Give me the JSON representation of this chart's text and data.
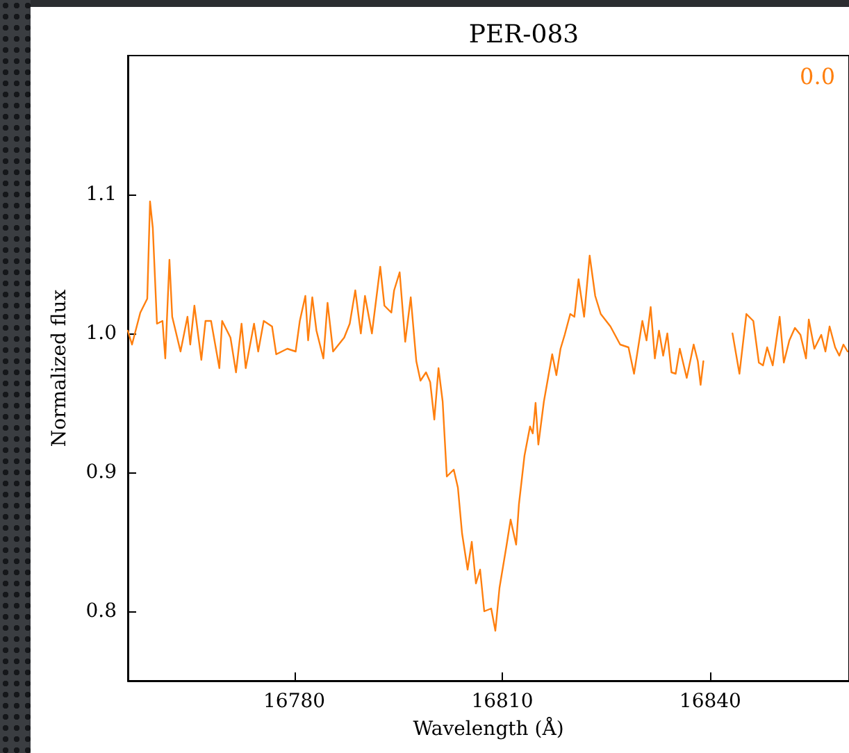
{
  "chart_data": {
    "type": "line",
    "title": "PER-083",
    "xlabel": "Wavelength (Å)",
    "ylabel": "Normalized flux",
    "annotations": [
      "0.0"
    ],
    "xlim": [
      16756,
      16860
    ],
    "ylim": [
      0.75,
      1.2
    ],
    "xticks": [
      16780,
      16810,
      16840
    ],
    "yticks": [
      0.8,
      0.9,
      {
        "value": 1.0,
        "label": "1.0"
      },
      1.1
    ],
    "grid": false,
    "marker": "none",
    "line_style": "solid",
    "series": [
      {
        "color": "#ff7f0e",
        "x": [
          16756.0,
          16756.6,
          16757.8,
          16758.8,
          16759.2,
          16759.6,
          16760.2,
          16761.0,
          16761.4,
          16762.0,
          16762.4,
          16763.6,
          16764.6,
          16765.0,
          16765.6,
          16766.6,
          16767.2,
          16768.0,
          16769.2,
          16769.6,
          16770.8,
          16771.6,
          16772.4,
          16773.0,
          16774.2,
          16774.8,
          16775.6,
          16776.8,
          16777.4,
          16779.0,
          16780.2,
          16780.8,
          16781.6,
          16782.0,
          16782.6,
          16783.2,
          16784.2,
          16784.8,
          16785.6,
          16787.2,
          16788.0,
          16788.8,
          16789.6,
          16790.2,
          16791.2,
          16792.4,
          16793.0,
          16794.0,
          16794.4,
          16795.2,
          16796.0,
          16796.8,
          16797.6,
          16798.2,
          16799.0,
          16799.6,
          16800.2,
          16800.8,
          16801.4,
          16802.0,
          16803.0,
          16803.6,
          16804.2,
          16805.0,
          16805.6,
          16806.2,
          16806.8,
          16807.4,
          16808.4,
          16809.0,
          16809.6,
          16810.6,
          16811.2,
          16812.0,
          16812.4,
          16813.2,
          16814.0,
          16814.4,
          16814.8,
          16815.2,
          16816.0,
          16816.6,
          16817.2,
          16817.8,
          16818.4,
          16819.0,
          16819.8,
          16820.4,
          16821.0,
          16821.8,
          16822.6,
          16823.4,
          16824.2,
          16825.6,
          16827.0,
          16828.2,
          16829.0,
          16830.2,
          16830.8,
          16831.4,
          16832.0,
          16832.6,
          16833.2,
          16833.8,
          16834.4,
          16835.0,
          16835.6,
          16836.6,
          16837.6,
          16838.2,
          16838.6,
          16839.0,
          16841.0,
          16843.2,
          16844.2,
          16845.2,
          16846.2,
          16847.0,
          16847.6,
          16848.2,
          16849.0,
          16850.0,
          16850.6,
          16851.4,
          16852.2,
          16853.0,
          16853.8,
          16854.2,
          16855.0,
          16856.0,
          16856.6,
          16857.2,
          16858.0,
          16858.6,
          16859.2,
          16859.8
        ],
        "values": [
          1.002,
          0.992,
          1.015,
          1.025,
          1.095,
          1.076,
          1.007,
          1.009,
          0.982,
          1.053,
          1.012,
          0.987,
          1.012,
          0.992,
          1.02,
          0.981,
          1.009,
          1.009,
          0.975,
          1.009,
          0.997,
          0.972,
          1.007,
          0.975,
          1.007,
          0.987,
          1.009,
          1.005,
          0.985,
          0.989,
          0.987,
          1.009,
          1.027,
          0.995,
          1.026,
          1.002,
          0.982,
          1.022,
          0.987,
          0.997,
          1.007,
          1.031,
          1.0,
          1.027,
          1.0,
          1.048,
          1.02,
          1.015,
          1.031,
          1.044,
          0.994,
          1.026,
          0.98,
          0.966,
          0.972,
          0.965,
          0.938,
          0.975,
          0.951,
          0.897,
          0.902,
          0.889,
          0.856,
          0.83,
          0.85,
          0.82,
          0.83,
          0.8,
          0.802,
          0.786,
          0.817,
          0.847,
          0.866,
          0.848,
          0.877,
          0.912,
          0.933,
          0.928,
          0.95,
          0.92,
          0.951,
          0.968,
          0.985,
          0.97,
          0.989,
          0.999,
          1.014,
          1.012,
          1.039,
          1.012,
          1.056,
          1.027,
          1.014,
          1.005,
          0.992,
          0.99,
          0.971,
          1.009,
          0.995,
          1.019,
          0.982,
          1.002,
          0.984,
          1.0,
          0.972,
          0.971,
          0.989,
          0.968,
          0.992,
          0.98,
          0.963,
          0.98,
          null,
          1.0,
          0.971,
          1.014,
          1.009,
          0.979,
          0.977,
          0.99,
          0.977,
          1.012,
          0.979,
          0.995,
          1.004,
          0.999,
          0.982,
          1.01,
          0.989,
          0.999,
          0.987,
          1.005,
          0.99,
          0.984,
          0.992,
          0.987
        ]
      }
    ]
  }
}
